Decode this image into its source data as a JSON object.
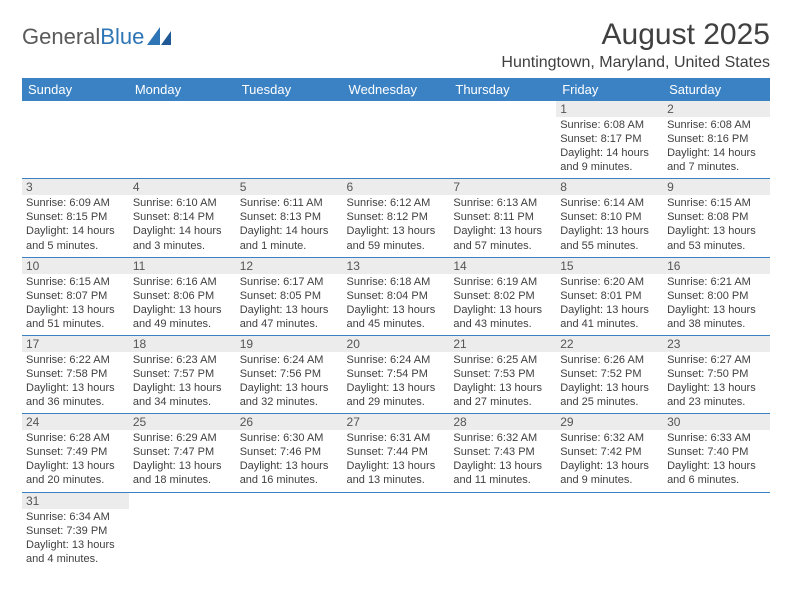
{
  "colors": {
    "header_bg": "#3b82c4",
    "header_fg": "#ffffff",
    "daynum_bg": "#ececec",
    "row_divider": "#3b82c4",
    "text": "#404040",
    "logo_blue": "#2e75b6"
  },
  "typography": {
    "title_fontsize": 30,
    "location_fontsize": 16,
    "weekday_fontsize": 13,
    "daynum_fontsize": 12,
    "body_fontsize": 11,
    "font_family": "Arial"
  },
  "logo": {
    "part1": "General",
    "part2": "Blue"
  },
  "title": "August 2025",
  "location": "Huntingtown, Maryland, United States",
  "weekdays": [
    "Sunday",
    "Monday",
    "Tuesday",
    "Wednesday",
    "Thursday",
    "Friday",
    "Saturday"
  ],
  "calendar": {
    "type": "table",
    "columns": 7,
    "weeks": [
      [
        null,
        null,
        null,
        null,
        null,
        {
          "n": "1",
          "sunrise": "6:08 AM",
          "sunset": "8:17 PM",
          "daylight": "14 hours and 9 minutes."
        },
        {
          "n": "2",
          "sunrise": "6:08 AM",
          "sunset": "8:16 PM",
          "daylight": "14 hours and 7 minutes."
        }
      ],
      [
        {
          "n": "3",
          "sunrise": "6:09 AM",
          "sunset": "8:15 PM",
          "daylight": "14 hours and 5 minutes."
        },
        {
          "n": "4",
          "sunrise": "6:10 AM",
          "sunset": "8:14 PM",
          "daylight": "14 hours and 3 minutes."
        },
        {
          "n": "5",
          "sunrise": "6:11 AM",
          "sunset": "8:13 PM",
          "daylight": "14 hours and 1 minute."
        },
        {
          "n": "6",
          "sunrise": "6:12 AM",
          "sunset": "8:12 PM",
          "daylight": "13 hours and 59 minutes."
        },
        {
          "n": "7",
          "sunrise": "6:13 AM",
          "sunset": "8:11 PM",
          "daylight": "13 hours and 57 minutes."
        },
        {
          "n": "8",
          "sunrise": "6:14 AM",
          "sunset": "8:10 PM",
          "daylight": "13 hours and 55 minutes."
        },
        {
          "n": "9",
          "sunrise": "6:15 AM",
          "sunset": "8:08 PM",
          "daylight": "13 hours and 53 minutes."
        }
      ],
      [
        {
          "n": "10",
          "sunrise": "6:15 AM",
          "sunset": "8:07 PM",
          "daylight": "13 hours and 51 minutes."
        },
        {
          "n": "11",
          "sunrise": "6:16 AM",
          "sunset": "8:06 PM",
          "daylight": "13 hours and 49 minutes."
        },
        {
          "n": "12",
          "sunrise": "6:17 AM",
          "sunset": "8:05 PM",
          "daylight": "13 hours and 47 minutes."
        },
        {
          "n": "13",
          "sunrise": "6:18 AM",
          "sunset": "8:04 PM",
          "daylight": "13 hours and 45 minutes."
        },
        {
          "n": "14",
          "sunrise": "6:19 AM",
          "sunset": "8:02 PM",
          "daylight": "13 hours and 43 minutes."
        },
        {
          "n": "15",
          "sunrise": "6:20 AM",
          "sunset": "8:01 PM",
          "daylight": "13 hours and 41 minutes."
        },
        {
          "n": "16",
          "sunrise": "6:21 AM",
          "sunset": "8:00 PM",
          "daylight": "13 hours and 38 minutes."
        }
      ],
      [
        {
          "n": "17",
          "sunrise": "6:22 AM",
          "sunset": "7:58 PM",
          "daylight": "13 hours and 36 minutes."
        },
        {
          "n": "18",
          "sunrise": "6:23 AM",
          "sunset": "7:57 PM",
          "daylight": "13 hours and 34 minutes."
        },
        {
          "n": "19",
          "sunrise": "6:24 AM",
          "sunset": "7:56 PM",
          "daylight": "13 hours and 32 minutes."
        },
        {
          "n": "20",
          "sunrise": "6:24 AM",
          "sunset": "7:54 PM",
          "daylight": "13 hours and 29 minutes."
        },
        {
          "n": "21",
          "sunrise": "6:25 AM",
          "sunset": "7:53 PM",
          "daylight": "13 hours and 27 minutes."
        },
        {
          "n": "22",
          "sunrise": "6:26 AM",
          "sunset": "7:52 PM",
          "daylight": "13 hours and 25 minutes."
        },
        {
          "n": "23",
          "sunrise": "6:27 AM",
          "sunset": "7:50 PM",
          "daylight": "13 hours and 23 minutes."
        }
      ],
      [
        {
          "n": "24",
          "sunrise": "6:28 AM",
          "sunset": "7:49 PM",
          "daylight": "13 hours and 20 minutes."
        },
        {
          "n": "25",
          "sunrise": "6:29 AM",
          "sunset": "7:47 PM",
          "daylight": "13 hours and 18 minutes."
        },
        {
          "n": "26",
          "sunrise": "6:30 AM",
          "sunset": "7:46 PM",
          "daylight": "13 hours and 16 minutes."
        },
        {
          "n": "27",
          "sunrise": "6:31 AM",
          "sunset": "7:44 PM",
          "daylight": "13 hours and 13 minutes."
        },
        {
          "n": "28",
          "sunrise": "6:32 AM",
          "sunset": "7:43 PM",
          "daylight": "13 hours and 11 minutes."
        },
        {
          "n": "29",
          "sunrise": "6:32 AM",
          "sunset": "7:42 PM",
          "daylight": "13 hours and 9 minutes."
        },
        {
          "n": "30",
          "sunrise": "6:33 AM",
          "sunset": "7:40 PM",
          "daylight": "13 hours and 6 minutes."
        }
      ],
      [
        {
          "n": "31",
          "sunrise": "6:34 AM",
          "sunset": "7:39 PM",
          "daylight": "13 hours and 4 minutes."
        },
        null,
        null,
        null,
        null,
        null,
        null
      ]
    ]
  },
  "labels": {
    "sunrise_prefix": "Sunrise: ",
    "sunset_prefix": "Sunset: ",
    "daylight_prefix": "Daylight: "
  }
}
